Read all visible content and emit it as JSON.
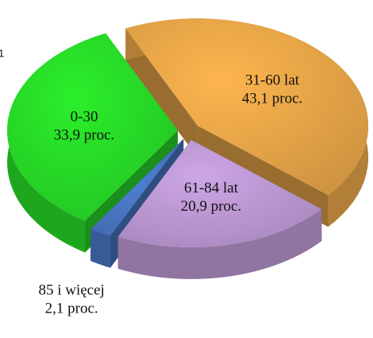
{
  "chart_data": {
    "type": "pie",
    "annotation": "1",
    "categories": [
      "0-30",
      "31-60 lat",
      "61-84 lat",
      "85 i więcej"
    ],
    "values": [
      33.9,
      43.1,
      20.9,
      2.1
    ],
    "value_labels": [
      "33,9 proc.",
      "43,1 proc.",
      "20,9 proc.",
      "2,1 proc."
    ],
    "colors": [
      "#2bef2b",
      "#fdb54e",
      "#cda6e6",
      "#4f82d6"
    ]
  }
}
